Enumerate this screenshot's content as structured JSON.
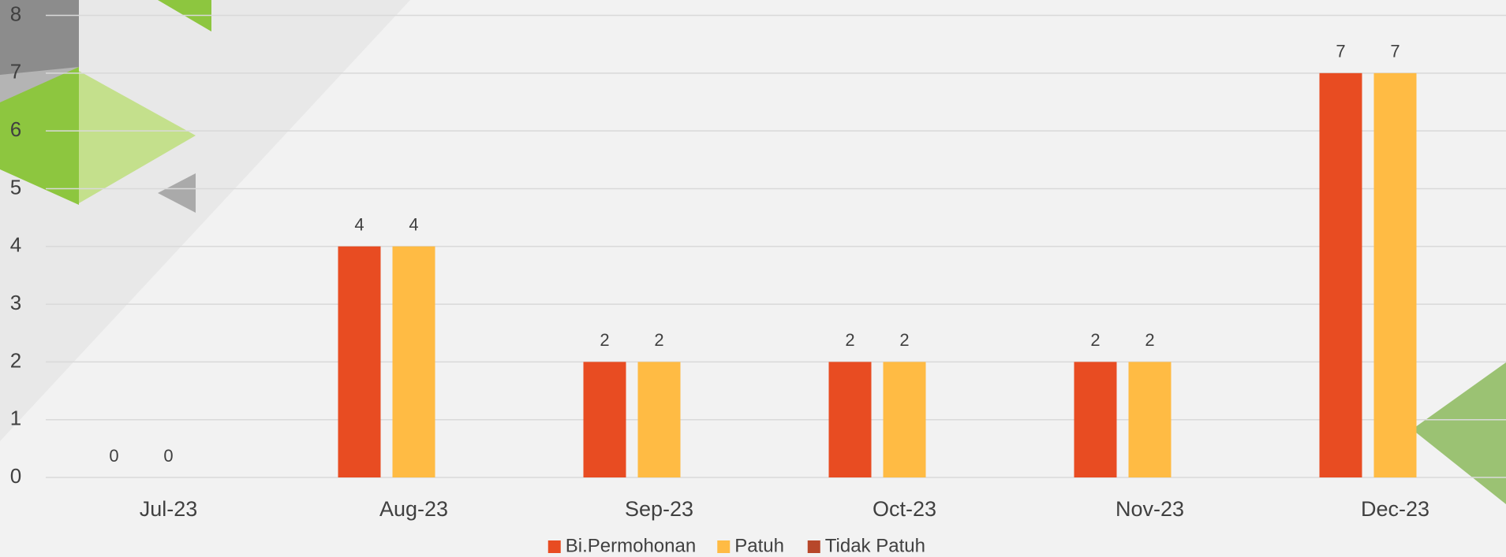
{
  "chart_data": {
    "type": "bar",
    "categories": [
      "Jul-23",
      "Aug-23",
      "Sep-23",
      "Oct-23",
      "Nov-23",
      "Dec-23"
    ],
    "series": [
      {
        "name": "Bi.Permohonan",
        "color": "#e84c22",
        "values": [
          0,
          4,
          2,
          2,
          2,
          7
        ]
      },
      {
        "name": "Patuh",
        "color": "#ffbb44",
        "values": [
          0,
          4,
          2,
          2,
          2,
          7
        ]
      },
      {
        "name": "Tidak Patuh",
        "color": "#b7472a",
        "values": [
          null,
          null,
          null,
          null,
          null,
          null
        ]
      }
    ],
    "ylim": [
      0,
      8
    ],
    "yticks": [
      0,
      1,
      2,
      3,
      4,
      5,
      6,
      7,
      8
    ],
    "grid": true,
    "legend": "bottom"
  }
}
